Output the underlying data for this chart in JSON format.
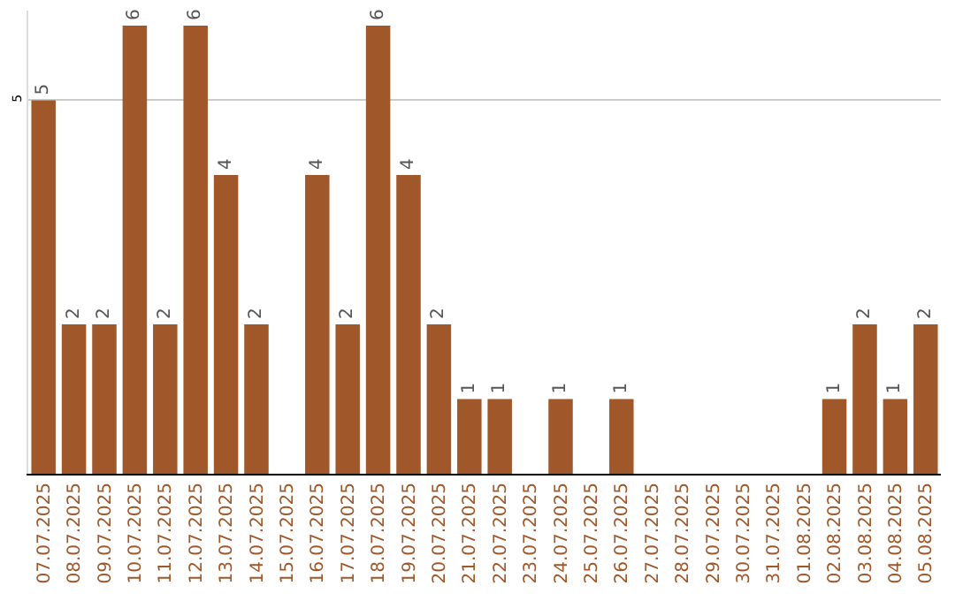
{
  "chart_data": {
    "type": "bar",
    "categories": [
      "07.07.2025",
      "08.07.2025",
      "09.07.2025",
      "10.07.2025",
      "11.07.2025",
      "12.07.2025",
      "13.07.2025",
      "14.07.2025",
      "15.07.2025",
      "16.07.2025",
      "17.07.2025",
      "18.07.2025",
      "19.07.2025",
      "20.07.2025",
      "21.07.2025",
      "22.07.2025",
      "23.07.2025",
      "24.07.2025",
      "25.07.2025",
      "26.07.2025",
      "27.07.2025",
      "28.07.2025",
      "29.07.2025",
      "30.07.2025",
      "31.07.2025",
      "01.08.2025",
      "02.08.2025",
      "03.08.2025",
      "04.08.2025",
      "05.08.2025"
    ],
    "values": [
      5,
      2,
      2,
      6,
      2,
      6,
      4,
      2,
      0,
      4,
      2,
      6,
      4,
      2,
      1,
      1,
      0,
      1,
      0,
      1,
      0,
      0,
      0,
      0,
      0,
      0,
      1,
      2,
      1,
      2
    ],
    "value_labels": [
      "5",
      "2",
      "2",
      "6",
      "2",
      "6",
      "4",
      "2",
      null,
      "4",
      "2",
      "6",
      "4",
      "2",
      "1",
      "1",
      null,
      "1",
      null,
      "1",
      null,
      null,
      null,
      null,
      null,
      null,
      "1",
      "2",
      "1",
      "2"
    ],
    "color": "#a0572a",
    "ylim": [
      0,
      6.2
    ],
    "yticks": [
      5
    ],
    "grid": "y",
    "legend": false
  }
}
